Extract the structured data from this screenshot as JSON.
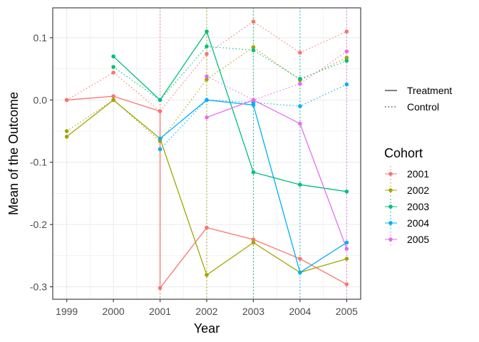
{
  "chart_data": {
    "type": "line",
    "xlabel": "Year",
    "ylabel": "Mean of the Outcome",
    "xlim": [
      1999,
      2005
    ],
    "ylim": [
      -0.32,
      0.148
    ],
    "x_ticks": [
      1999,
      2000,
      2001,
      2002,
      2003,
      2004,
      2005
    ],
    "y_ticks": [
      -0.3,
      -0.2,
      -0.1,
      0.0,
      0.1
    ],
    "y_tick_labels": [
      "-0.3",
      "-0.2",
      "-0.1",
      "0.0",
      "0.1"
    ],
    "grid": true,
    "legend_position": "right",
    "linetype_legend": {
      "entries": [
        {
          "label": "Treatment",
          "dash": "solid"
        },
        {
          "label": "Control",
          "dash": "dotted"
        }
      ]
    },
    "cohort_legend_title": "Cohort",
    "series": [
      {
        "name": "2001",
        "cohort_year": 2001,
        "color": "#F8766D",
        "treatment": [
          [
            1999,
            0.0
          ],
          [
            2000,
            0.006
          ],
          [
            2001,
            -0.018
          ],
          [
            2001,
            -0.302
          ],
          [
            2002,
            -0.205
          ],
          [
            2003,
            -0.224
          ],
          [
            2004,
            -0.255
          ],
          [
            2005,
            -0.296
          ]
        ],
        "control": [
          [
            1999,
            0.0
          ],
          [
            2000,
            0.044
          ],
          [
            2001,
            -0.018
          ],
          [
            2002,
            0.074
          ],
          [
            2003,
            0.126
          ],
          [
            2004,
            0.076
          ],
          [
            2005,
            0.11
          ]
        ]
      },
      {
        "name": "2002",
        "cohort_year": 2002,
        "color": "#A3A500",
        "treatment": [
          [
            1999,
            -0.059
          ],
          [
            2000,
            0.0
          ],
          [
            2001,
            -0.062
          ],
          [
            2002,
            -0.281
          ],
          [
            2003,
            -0.229
          ],
          [
            2004,
            -0.277
          ],
          [
            2005,
            -0.255
          ]
        ],
        "control": [
          [
            1999,
            -0.05
          ],
          [
            2000,
            0.0
          ],
          [
            2001,
            -0.066
          ],
          [
            2002,
            0.033
          ],
          [
            2003,
            0.085
          ],
          [
            2004,
            0.032
          ],
          [
            2005,
            0.068
          ]
        ]
      },
      {
        "name": "2003",
        "cohort_year": 2003,
        "color": "#00BF7D",
        "treatment": [
          [
            2000,
            0.07
          ],
          [
            2001,
            0.0
          ],
          [
            2002,
            0.11
          ],
          [
            2003,
            -0.116
          ],
          [
            2004,
            -0.136
          ],
          [
            2005,
            -0.147
          ]
        ],
        "control": [
          [
            2000,
            0.053
          ],
          [
            2001,
            0.0
          ],
          [
            2002,
            0.086
          ],
          [
            2003,
            0.08
          ],
          [
            2004,
            0.034
          ],
          [
            2005,
            0.063
          ]
        ]
      },
      {
        "name": "2004",
        "cohort_year": 2004,
        "color": "#00B0F6",
        "treatment": [
          [
            2001,
            -0.062
          ],
          [
            2002,
            0.0
          ],
          [
            2003,
            -0.008
          ],
          [
            2004,
            -0.277
          ],
          [
            2005,
            -0.229
          ]
        ],
        "control": [
          [
            2001,
            -0.079
          ],
          [
            2002,
            0.0
          ],
          [
            2003,
            -0.004
          ],
          [
            2004,
            -0.01
          ],
          [
            2005,
            0.025
          ]
        ]
      },
      {
        "name": "2005",
        "cohort_year": 2005,
        "color": "#E76BF3",
        "treatment": [
          [
            2002,
            -0.028
          ],
          [
            2003,
            0.0
          ],
          [
            2004,
            -0.038
          ],
          [
            2005,
            -0.239
          ]
        ],
        "control": [
          [
            2002,
            0.038
          ],
          [
            2003,
            0.0
          ],
          [
            2004,
            0.026
          ],
          [
            2005,
            0.078
          ]
        ]
      }
    ]
  }
}
